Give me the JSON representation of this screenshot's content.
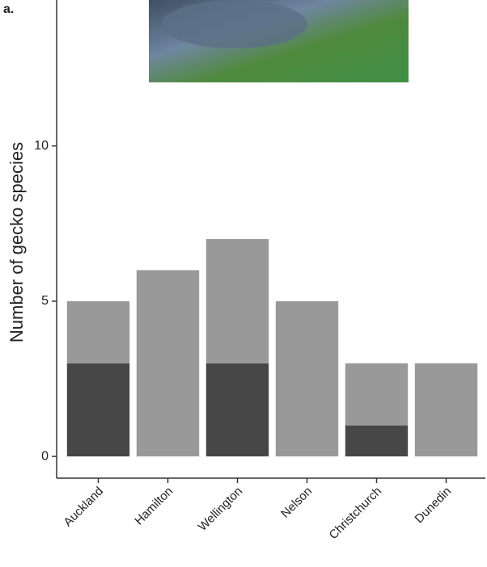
{
  "chart_data": {
    "type": "bar",
    "stacked": true,
    "panel_label": "a.",
    "y_label": "Number of gecko species",
    "categories": [
      "Auckland",
      "Hamilton",
      "Wellington",
      "Nelson",
      "Christchurch",
      "Dunedin"
    ],
    "series": [
      {
        "color": "#474747",
        "values": [
          3,
          0,
          3,
          0,
          1,
          0
        ]
      },
      {
        "color": "#999999",
        "values": [
          2,
          6,
          4,
          5,
          2,
          3
        ]
      }
    ],
    "ylim": [
      -0.7,
      14.7
    ],
    "yticks": [
      0,
      5,
      10
    ],
    "grid": false
  }
}
